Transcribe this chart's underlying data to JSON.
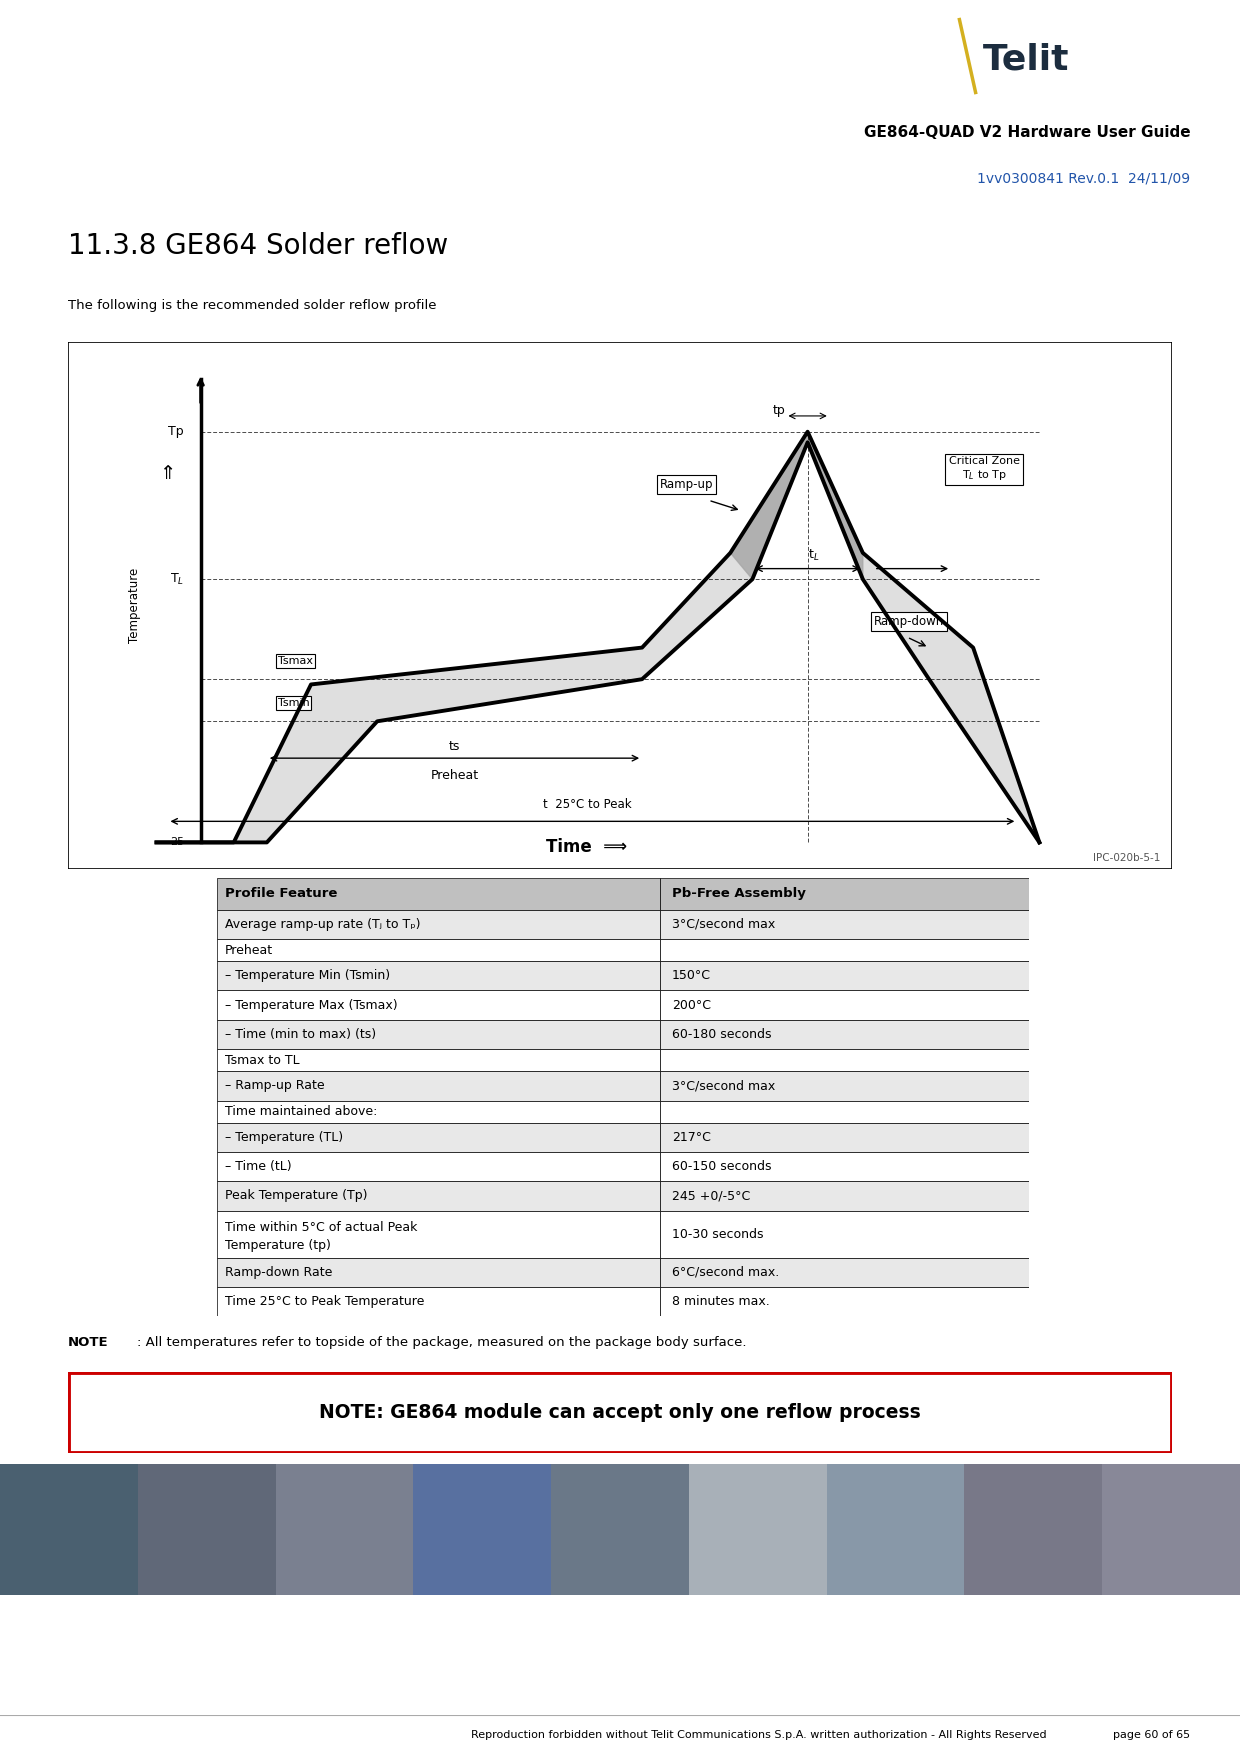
{
  "section_title": "11.3.8 GE864 Solder reflow",
  "subtitle": "The following is the recommended solder reflow profile",
  "chart_note": "IPC-020b-5-1",
  "header_bg": "#1c2d3f",
  "header_right_bg": "#bbbfc4",
  "header_white_gap": "#ffffff",
  "title_line1": "GE864-QUAD V2 Hardware User Guide",
  "title_line2": "1vv0300841 Rev.0.1  24/11/09",
  "title_line2_color": "#2255aa",
  "table_data": [
    [
      "Profile Feature",
      "Pb-Free Assembly"
    ],
    [
      "Average ramp-up rate (Tⱼ to Tₚ)",
      "3°C/second max"
    ],
    [
      "Preheat",
      ""
    ],
    [
      "– Temperature Min (Tsmin)",
      "150°C"
    ],
    [
      "– Temperature Max (Tsmax)",
      "200°C"
    ],
    [
      "– Time (min to max) (ts)",
      "60-180 seconds"
    ],
    [
      "Tsmax to TL",
      ""
    ],
    [
      "– Ramp-up Rate",
      "3°C/second max"
    ],
    [
      "Time maintained above:",
      ""
    ],
    [
      "– Temperature (TL)",
      "217°C"
    ],
    [
      "– Time (tL)",
      "60-150 seconds"
    ],
    [
      "Peak Temperature (Tp)",
      "245 +0/-5°C"
    ],
    [
      "Time within 5°C of actual Peak\nTemperature (tp)",
      "10-30 seconds"
    ],
    [
      "Ramp-down Rate",
      "6°C/second max."
    ],
    [
      "Time 25°C to Peak Temperature",
      "8 minutes max."
    ]
  ],
  "note_text": "NOTE: All temperatures refer to topside of the package, measured on the package body surface.",
  "warning_text": "NOTE: GE864 module can accept only one reflow process",
  "footer_text": "Reproduction forbidden without Telit Communications S.p.A. written authorization - All Rights Reserved",
  "page_text": "page 60 of 65",
  "bg_color": "#ffffff",
  "table_header_bg": "#c0c0c0",
  "table_row_bg1": "#ffffff",
  "table_row_bg2": "#e8e8e8",
  "warning_border": "#cc0000",
  "photo_colors": [
    "#4a6070",
    "#606878",
    "#7a8090",
    "#5870a0",
    "#6a7888",
    "#a8b0b8",
    "#8898a8",
    "#787888",
    "#888898"
  ]
}
